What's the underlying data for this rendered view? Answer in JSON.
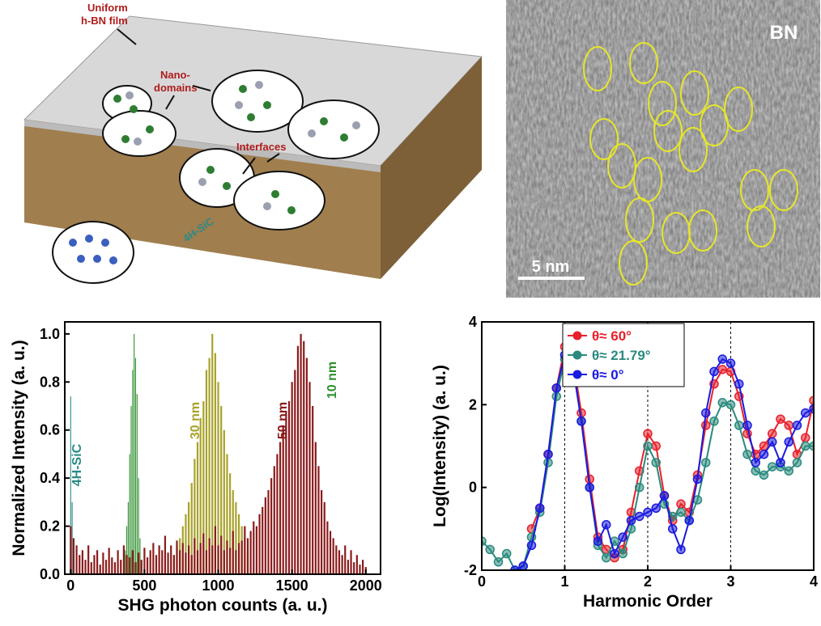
{
  "schematic": {
    "film_label_1": "Uniform",
    "film_label_2": "h-BN film",
    "domains_label_1": "Nano-",
    "domains_label_2": "domains",
    "interfaces_label": "Interfaces",
    "substrate_label": "4H-SiC"
  },
  "micrograph": {
    "label": "BN",
    "scale_label": "5 nm"
  },
  "chart_data": [
    {
      "type": "bar",
      "xlabel": "SHG photon counts (a. u.)",
      "ylabel": "Normalized Intensity (a. u.)",
      "xlim": [
        -40,
        2100
      ],
      "ylim": [
        0,
        1.05
      ],
      "xticks": [
        0,
        500,
        1000,
        1500,
        2000
      ],
      "yticks": [
        {
          "value": 0,
          "label": "0.0"
        },
        {
          "value": 0.2,
          "label": "0.2"
        },
        {
          "value": 0.4,
          "label": "0.4"
        },
        {
          "value": 0.6,
          "label": "0.6"
        },
        {
          "value": 0.8,
          "label": "0.8"
        },
        {
          "value": 1,
          "label": "1.0"
        }
      ],
      "annotate_series": true,
      "series": [
        {
          "name": "4H-SiC",
          "color": "#2a8a86",
          "x": [
            0,
            10,
            20
          ],
          "values": [
            0.74,
            0.3,
            0.15
          ]
        },
        {
          "name": "10 nm",
          "color": "#2f8f2f",
          "x": [
            360,
            370,
            380,
            390,
            400,
            410,
            420,
            430,
            440,
            450,
            460,
            470,
            480
          ],
          "values": [
            0.05,
            0.1,
            0.2,
            0.3,
            0.5,
            0.7,
            0.85,
            1.0,
            0.9,
            0.75,
            0.4,
            0.15,
            0.05
          ]
        },
        {
          "name": "30 nm",
          "color": "#a8a22a",
          "x": [
            700,
            720,
            740,
            760,
            780,
            800,
            820,
            840,
            860,
            880,
            900,
            920,
            940,
            960,
            980,
            1000,
            1020,
            1040,
            1060,
            1080,
            1100,
            1120,
            1140,
            1160,
            1180,
            1200
          ],
          "values": [
            0.08,
            0.12,
            0.15,
            0.2,
            0.25,
            0.3,
            0.38,
            0.48,
            0.55,
            0.65,
            0.72,
            0.85,
            0.9,
            1.0,
            0.92,
            0.8,
            0.7,
            0.6,
            0.5,
            0.42,
            0.35,
            0.3,
            0.25,
            0.2,
            0.15,
            0.1
          ]
        },
        {
          "name": "50 nm",
          "color": "#8b1a1a",
          "x": [
            0,
            20,
            40,
            60,
            80,
            100,
            120,
            140,
            160,
            180,
            200,
            220,
            240,
            260,
            280,
            300,
            320,
            340,
            360,
            380,
            400,
            420,
            440,
            460,
            480,
            500,
            520,
            540,
            560,
            580,
            600,
            620,
            640,
            660,
            680,
            700,
            720,
            740,
            760,
            780,
            800,
            820,
            840,
            860,
            880,
            900,
            920,
            940,
            960,
            980,
            1000,
            1020,
            1040,
            1060,
            1080,
            1100,
            1120,
            1140,
            1160,
            1180,
            1200,
            1220,
            1240,
            1260,
            1280,
            1300,
            1320,
            1340,
            1360,
            1380,
            1400,
            1420,
            1440,
            1460,
            1480,
            1500,
            1520,
            1540,
            1560,
            1580,
            1600,
            1620,
            1640,
            1660,
            1680,
            1700,
            1720,
            1740,
            1760,
            1780,
            1800,
            1820,
            1840,
            1860,
            1880,
            1900,
            1920,
            1940,
            1960,
            1980,
            2000
          ],
          "values": [
            0.2,
            0.15,
            0.12,
            0.08,
            0.1,
            0.06,
            0.12,
            0.05,
            0.08,
            0.1,
            0.04,
            0.09,
            0.06,
            0.11,
            0.07,
            0.05,
            0.1,
            0.06,
            0.12,
            0.08,
            0.07,
            0.1,
            0.05,
            0.09,
            0.06,
            0.11,
            0.07,
            0.1,
            0.13,
            0.08,
            0.12,
            0.1,
            0.16,
            0.09,
            0.12,
            0.08,
            0.14,
            0.1,
            0.13,
            0.09,
            0.12,
            0.08,
            0.15,
            0.1,
            0.13,
            0.17,
            0.1,
            0.15,
            0.12,
            0.2,
            0.12,
            0.16,
            0.1,
            0.14,
            0.11,
            0.18,
            0.1,
            0.13,
            0.14,
            0.2,
            0.15,
            0.18,
            0.22,
            0.2,
            0.25,
            0.28,
            0.32,
            0.35,
            0.4,
            0.45,
            0.5,
            0.55,
            0.62,
            0.68,
            0.72,
            0.8,
            0.85,
            0.95,
            1.0,
            0.97,
            0.9,
            0.8,
            0.7,
            0.55,
            0.45,
            0.35,
            0.3,
            0.22,
            0.18,
            0.15,
            0.12,
            0.1,
            0.08,
            0.12,
            0.06,
            0.1,
            0.05,
            0.08,
            0.04,
            0.06,
            0.03
          ]
        }
      ]
    },
    {
      "type": "line",
      "xlabel": "Harmonic Order",
      "ylabel": "Log(Intensity) (a. u.)",
      "xlim": [
        0,
        4
      ],
      "ylim": [
        -2,
        4
      ],
      "xticks": [
        0,
        1,
        2,
        3,
        4
      ],
      "yticks": [
        -2,
        0,
        2,
        4
      ],
      "vlines": [
        1,
        2,
        3
      ],
      "legend": "upper center",
      "x": [
        0,
        0.1,
        0.2,
        0.3,
        0.4,
        0.5,
        0.6,
        0.7,
        0.8,
        0.9,
        1,
        1.1,
        1.2,
        1.3,
        1.4,
        1.5,
        1.6,
        1.7,
        1.8,
        1.9,
        2,
        2.1,
        2.2,
        2.3,
        2.4,
        2.5,
        2.6,
        2.7,
        2.8,
        2.9,
        3,
        3.1,
        3.2,
        3.3,
        3.4,
        3.5,
        3.6,
        3.7,
        3.8,
        3.9,
        4
      ],
      "series": [
        {
          "name": "θ≈ 60°",
          "color": "#e8202a",
          "values": [
            null,
            null,
            null,
            null,
            null,
            null,
            -1.0,
            -0.5,
            0.8,
            2.4,
            3.4,
            3.1,
            1.8,
            0.2,
            -1.2,
            -1.5,
            -1.7,
            -1.5,
            -0.6,
            0.4,
            1.3,
            1.0,
            -0.2,
            -0.8,
            -0.4,
            -0.6,
            0.3,
            1.5,
            2.5,
            2.85,
            2.8,
            2.2,
            1.3,
            0.8,
            1.0,
            1.3,
            1.65,
            1.5,
            0.8,
            1.2,
            2.1
          ]
        },
        {
          "name": "θ≈ 21.79°",
          "color": "#2a8a7e",
          "values": [
            -1.3,
            -1.5,
            -1.8,
            -1.6,
            -2.0,
            -1.9,
            -1.2,
            -0.6,
            0.6,
            2.2,
            3.1,
            2.9,
            1.6,
            0.0,
            -1.4,
            -1.7,
            -1.3,
            -1.6,
            -1.0,
            0.0,
            1.0,
            0.6,
            -0.4,
            -0.7,
            -0.6,
            -0.8,
            -0.3,
            0.6,
            1.6,
            2.05,
            2.0,
            1.5,
            0.8,
            0.4,
            0.3,
            0.5,
            0.5,
            0.4,
            0.6,
            1.0,
            1.0
          ]
        },
        {
          "name": "θ≈ 0°",
          "color": "#1a1ae0",
          "values": [
            null,
            null,
            null,
            null,
            -2.0,
            -1.9,
            -1.4,
            -0.5,
            0.8,
            2.4,
            3.2,
            2.9,
            1.6,
            0.0,
            -1.3,
            -0.9,
            -1.6,
            -1.2,
            -0.8,
            -0.7,
            -0.6,
            -0.5,
            -0.2,
            -1.0,
            -1.5,
            -0.8,
            0.2,
            1.8,
            2.8,
            3.1,
            3.0,
            2.5,
            1.5,
            0.6,
            0.8,
            1.1,
            0.6,
            1.1,
            1.5,
            1.8,
            1.9
          ]
        }
      ]
    }
  ]
}
